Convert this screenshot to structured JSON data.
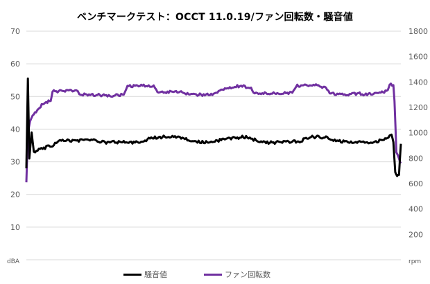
{
  "chart_data": {
    "type": "line",
    "title": "ベンチマークテスト：OCCT 11.0.19/ファン回転数・騒音値",
    "y_left_label": "dBA",
    "y_right_label": "rpm",
    "y_left_lim": [
      0,
      70
    ],
    "y_left_ticks": [
      "70",
      "60",
      "50",
      "40",
      "30",
      "20",
      "10"
    ],
    "y_right_lim": [
      0,
      1800
    ],
    "y_right_ticks": [
      "1800",
      "1600",
      "1400",
      "1200",
      "1000",
      "800",
      "600",
      "400",
      "200"
    ],
    "grid": true,
    "legend_position": "bottom",
    "series": [
      {
        "name": "騒音値",
        "axis": "left",
        "color": "#000000",
        "points": [
          [
            0,
            28
          ],
          [
            0.004,
            55.5
          ],
          [
            0.008,
            31
          ],
          [
            0.014,
            39
          ],
          [
            0.02,
            33
          ],
          [
            0.04,
            34
          ],
          [
            0.07,
            35
          ],
          [
            0.09,
            36.5
          ],
          [
            0.12,
            36.5
          ],
          [
            0.15,
            36.6
          ],
          [
            0.18,
            36.8
          ],
          [
            0.2,
            36
          ],
          [
            0.25,
            36
          ],
          [
            0.28,
            36
          ],
          [
            0.31,
            35.8
          ],
          [
            0.33,
            37.2
          ],
          [
            0.36,
            37.6
          ],
          [
            0.4,
            37.5
          ],
          [
            0.42,
            37.4
          ],
          [
            0.44,
            36.2
          ],
          [
            0.47,
            36
          ],
          [
            0.5,
            36.3
          ],
          [
            0.53,
            36.8
          ],
          [
            0.56,
            37.4
          ],
          [
            0.58,
            37.6
          ],
          [
            0.6,
            37.2
          ],
          [
            0.62,
            36.2
          ],
          [
            0.65,
            35.8
          ],
          [
            0.68,
            36.1
          ],
          [
            0.71,
            36.2
          ],
          [
            0.73,
            36
          ],
          [
            0.75,
            37.5
          ],
          [
            0.78,
            37.6
          ],
          [
            0.81,
            37.3
          ],
          [
            0.83,
            36.3
          ],
          [
            0.86,
            36
          ],
          [
            0.89,
            36
          ],
          [
            0.92,
            36.1
          ],
          [
            0.94,
            36.3
          ],
          [
            0.955,
            36.8
          ],
          [
            0.97,
            37.8
          ],
          [
            0.975,
            38
          ],
          [
            0.98,
            36
          ],
          [
            0.985,
            27
          ],
          [
            0.99,
            25.8
          ],
          [
            0.995,
            26
          ],
          [
            1,
            35.5
          ]
        ]
      },
      {
        "name": "ファン回転数",
        "axis": "right",
        "color": "#7030a0",
        "points": [
          [
            0,
            610
          ],
          [
            0.004,
            1000
          ],
          [
            0.01,
            1090
          ],
          [
            0.02,
            1150
          ],
          [
            0.035,
            1200
          ],
          [
            0.05,
            1240
          ],
          [
            0.065,
            1250
          ],
          [
            0.07,
            1325
          ],
          [
            0.1,
            1330
          ],
          [
            0.13,
            1335
          ],
          [
            0.145,
            1300
          ],
          [
            0.18,
            1300
          ],
          [
            0.22,
            1290
          ],
          [
            0.26,
            1300
          ],
          [
            0.27,
            1365
          ],
          [
            0.32,
            1370
          ],
          [
            0.34,
            1365
          ],
          [
            0.35,
            1325
          ],
          [
            0.38,
            1320
          ],
          [
            0.41,
            1325
          ],
          [
            0.44,
            1300
          ],
          [
            0.5,
            1300
          ],
          [
            0.52,
            1340
          ],
          [
            0.55,
            1360
          ],
          [
            0.57,
            1370
          ],
          [
            0.6,
            1355
          ],
          [
            0.61,
            1310
          ],
          [
            0.66,
            1310
          ],
          [
            0.71,
            1315
          ],
          [
            0.72,
            1370
          ],
          [
            0.77,
            1375
          ],
          [
            0.8,
            1350
          ],
          [
            0.81,
            1310
          ],
          [
            0.85,
            1300
          ],
          [
            0.89,
            1310
          ],
          [
            0.9,
            1300
          ],
          [
            0.94,
            1310
          ],
          [
            0.965,
            1330
          ],
          [
            0.97,
            1380
          ],
          [
            0.98,
            1375
          ],
          [
            0.983,
            1250
          ],
          [
            0.988,
            850
          ],
          [
            0.995,
            800
          ],
          [
            1,
            760
          ]
        ]
      }
    ]
  }
}
